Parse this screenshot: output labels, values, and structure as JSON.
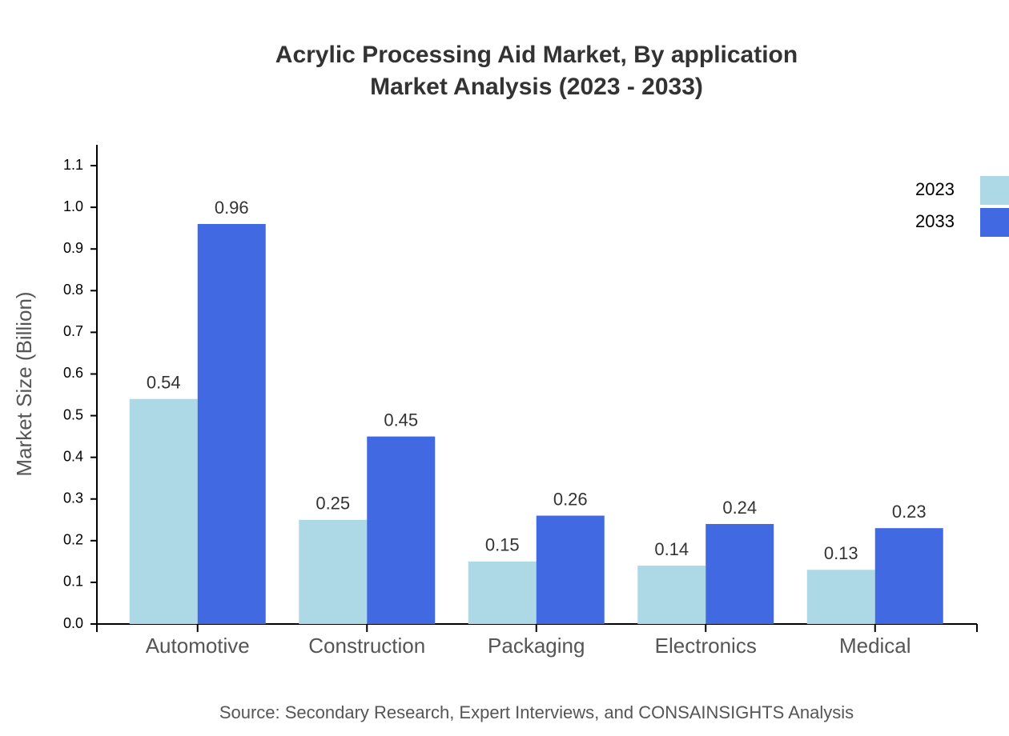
{
  "chart_data": {
    "type": "bar",
    "title": "Acrylic Processing Aid Market, By application",
    "subtitle": "Market Analysis (2023 - 2033)",
    "y_label": "Market Size (Billion)",
    "source": "Source: Secondary Research, Expert Interviews, and CONSAINSIGHTS Analysis",
    "categories": [
      "Automotive",
      "Construction",
      "Packaging",
      "Electronics",
      "Medical"
    ],
    "series": [
      {
        "name": "2023",
        "color": "#add8e6",
        "values": [
          0.54,
          0.25,
          0.15,
          0.14,
          0.13
        ]
      },
      {
        "name": "2033",
        "color": "#4169e1",
        "values": [
          0.96,
          0.45,
          0.26,
          0.24,
          0.23
        ]
      }
    ],
    "ylim": [
      0,
      1.15
    ],
    "yticks": [
      {
        "value": 0,
        "label": "0.0"
      },
      0.1,
      0.2,
      0.3,
      0.4,
      0.5,
      0.6,
      0.7,
      0.8,
      0.9,
      {
        "value": 1,
        "label": "1.0"
      },
      1.1
    ],
    "legend": "top-right"
  }
}
